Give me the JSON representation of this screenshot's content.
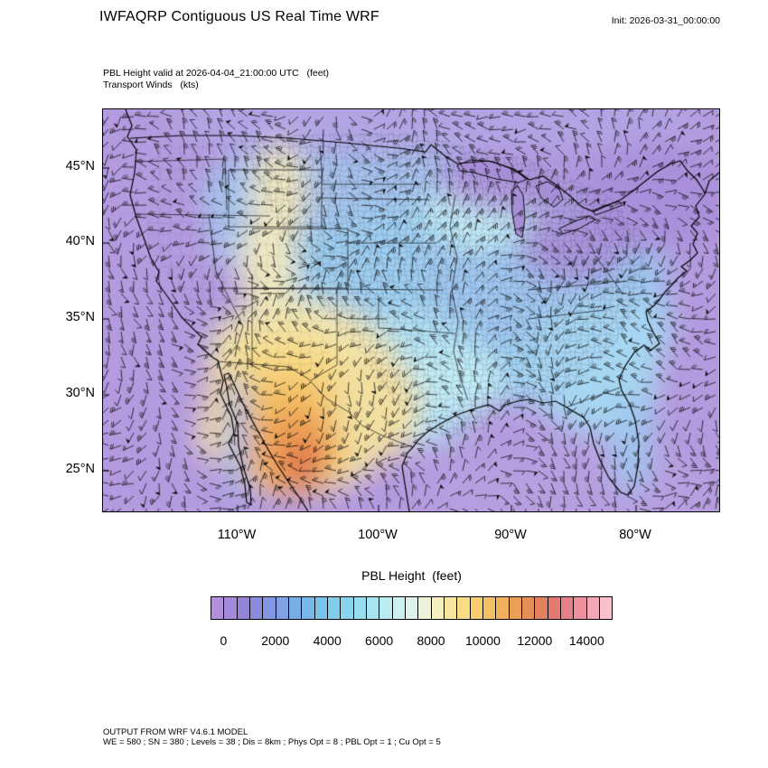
{
  "header": {
    "title": "IWFAQRP Contiguous US Real Time WRF",
    "init_label": "Init: 2026-03-31_00:00:00"
  },
  "subtitle": {
    "line1": "PBL Height valid at 2026-04-04_21:00:00 UTC   (feet)",
    "line2": "Transport Winds   (kts)"
  },
  "map": {
    "lat_labels": [
      "45°N",
      "40°N",
      "35°N",
      "30°N",
      "25°N"
    ],
    "lon_labels": [
      "110°W",
      "100°W",
      "90°W",
      "80°W"
    ]
  },
  "colorbar": {
    "title": "PBL Height  (feet)",
    "tick_labels": [
      "0",
      "2000",
      "4000",
      "6000",
      "8000",
      "10000",
      "12000",
      "14000"
    ],
    "colors": [
      "#b28fd9",
      "#a488d9",
      "#9484d9",
      "#8a8bdc",
      "#8496e0",
      "#7ea2e3",
      "#79ade6",
      "#77b8e8",
      "#79c2ea",
      "#7fccec",
      "#89d5ee",
      "#96ddf0",
      "#a6e4f1",
      "#b8ebf2",
      "#cbf0f0",
      "#ddf2e8",
      "#ecf3d8",
      "#f5f0bd",
      "#f8e89e",
      "#f8dd85",
      "#f7cf72",
      "#f4c065",
      "#f0b05c",
      "#eb9f56",
      "#e68e57",
      "#e38060",
      "#e27a72",
      "#e68087",
      "#ec919d",
      "#f2a7b6",
      "#f7c0cc"
    ]
  },
  "footer": {
    "line1": "OUTPUT FROM WRF V4.6.1 MODEL",
    "line2": "WE = 580 ; SN = 380 ; Levels = 38 ; Dis = 8km ; Phys Opt = 8 ; PBL Opt = 1 ; Cu Opt = 5"
  },
  "chart_data": {
    "type": "heatmap",
    "title": "IWFAQRP Contiguous US Real Time WRF",
    "variable": "PBL Height",
    "units": "feet",
    "wind_overlay": "Transport Winds",
    "wind_units": "kts",
    "init_time": "2026-03-31_00:00:00",
    "valid_time": "2026-04-04_21:00:00 UTC",
    "colorbar_tick_values": [
      0,
      2000,
      4000,
      6000,
      8000,
      10000,
      12000,
      14000
    ],
    "contour_interval": 500,
    "value_range": [
      0,
      15000
    ],
    "x_ticks": [
      "110°W",
      "100°W",
      "90°W",
      "80°W"
    ],
    "y_ticks": [
      "45°N",
      "40°N",
      "35°N",
      "30°N",
      "25°N"
    ],
    "legend_position": "bottom",
    "field_summary": [
      {
        "region": "Southwest US and northern Mexico",
        "pbl_height_feet": "8000-13000"
      },
      {
        "region": "Great Basin and Intermountain West",
        "pbl_height_feet": "5000-8000"
      },
      {
        "region": "Central and eastern US",
        "pbl_height_feet": "2000-5000"
      },
      {
        "region": "Pacific, Atlantic, Gulf of Mexico, Great Lakes, Canada, Northeast US",
        "pbl_height_feet": "0-1500"
      }
    ],
    "render_palette": {
      "ocean_purple": "#b49ade",
      "canada_lavender": "#b2a4e4",
      "gulf_purple": "#b79fe0",
      "ne_purple": "#aa8fda",
      "lakes_lavender": "#a995dc",
      "upper_midwest_lavender": "#ae97dd",
      "plains_periwinkle": "#a6c2ec",
      "central_blue": "#9dcdef",
      "east_blue": "#9fc6ee",
      "south_cyan": "#b2e2f3",
      "se_blue": "#a6d6f2",
      "pale_cyan": "#c0ebf4",
      "pale_yellow": "#eee7c0",
      "sw_pale_yellow": "#f0e5b0",
      "sw_yellow": "#f6db8a",
      "sw_gold": "#f3c267",
      "sw_orange": "#ec9e53",
      "sw_deep_orange": "#e17a52",
      "sw_red": "#d85a4f",
      "wtx_yellow": "#f1dfa0",
      "gulf_strip_blue": "#9db0e8",
      "lake_fill": "#a78fd8",
      "line_black": "#000000"
    },
    "model_footer": "OUTPUT FROM WRF V4.6.1 MODEL; WE = 580 ; SN = 380 ; Levels = 38 ; Dis = 8km ; Phys Opt = 8 ; PBL Opt = 1 ; Cu Opt = 5"
  }
}
